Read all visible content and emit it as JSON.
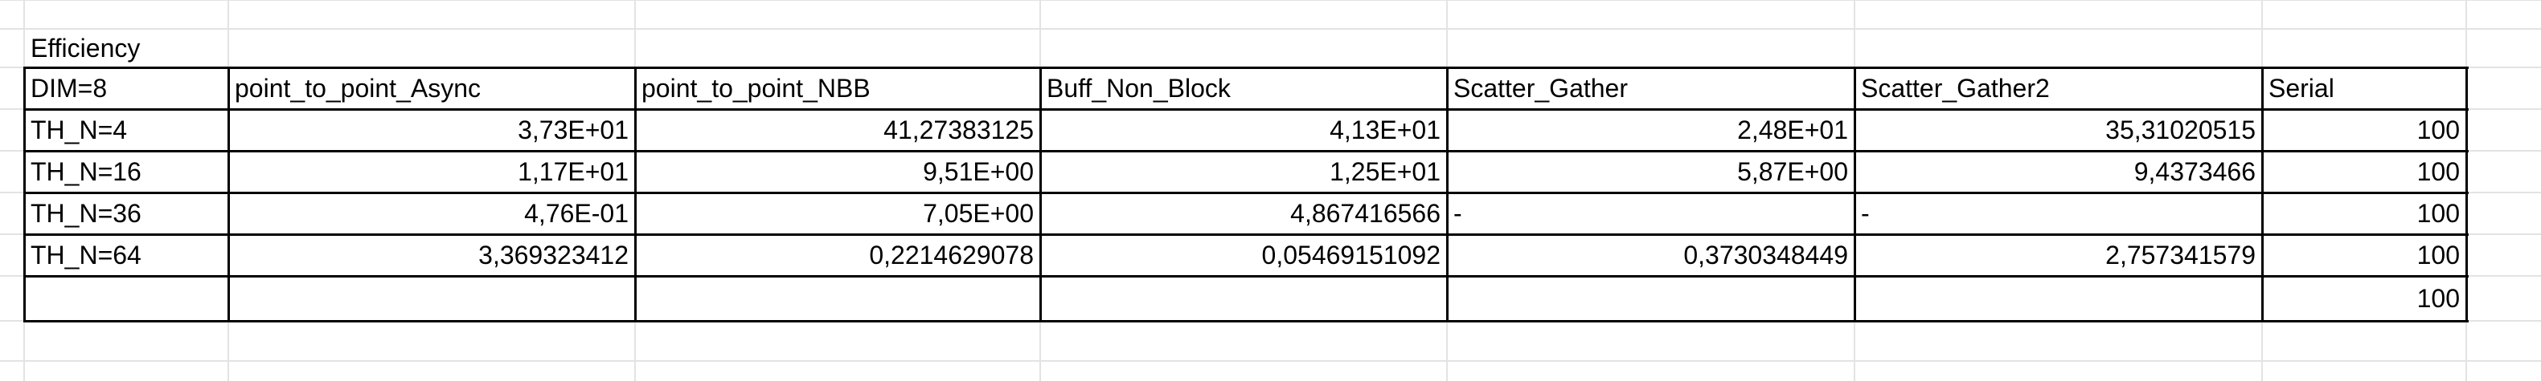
{
  "sheet": {
    "title_cell": "Efficiency",
    "header": [
      "DIM=8",
      "point_to_point_Async",
      "point_to_point_NBB",
      "Buff_Non_Block",
      "Scatter_Gather",
      "Scatter_Gather2",
      "Serial"
    ],
    "rows": [
      [
        "TH_N=4",
        "3,73E+01",
        "41,27383125",
        "4,13E+01",
        "2,48E+01",
        "35,31020515",
        "100"
      ],
      [
        "TH_N=16",
        "1,17E+01",
        "9,51E+00",
        "1,25E+01",
        "5,87E+00",
        "9,4373466",
        "100"
      ],
      [
        "TH_N=36",
        "4,76E-01",
        "7,05E+00",
        "4,867416566",
        "-",
        "-",
        "100"
      ],
      [
        "TH_N=64",
        "3,369323412",
        "0,2214629078",
        "0,05469151092",
        "0,3730348449",
        "2,757341579",
        "100"
      ],
      [
        "",
        "",
        "",
        "",
        "",
        "",
        "100"
      ]
    ]
  }
}
